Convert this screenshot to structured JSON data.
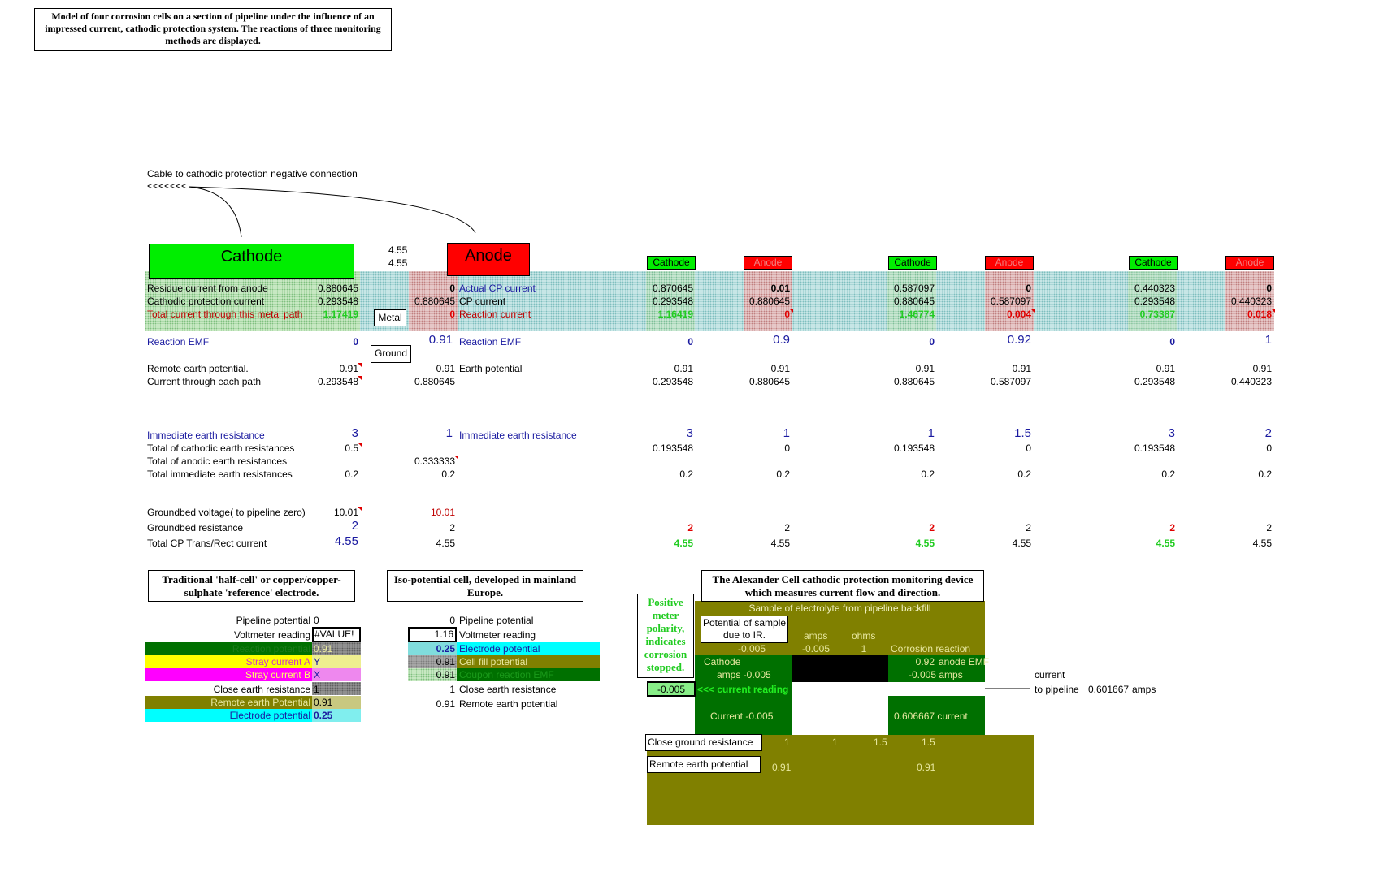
{
  "title_box": "Model of four corrosion cells on a section of pipeline under the influence of an impressed current, cathodic protection system.  The reactions of three monitoring methods are displayed.",
  "cable": {
    "label": "Cable to cathodic protection negative connection",
    "arrows": "<<<<<<<"
  },
  "cathode_label": "Cathode",
  "anode_label": "Anode",
  "small_cathode": "Cathode",
  "small_anode": "Anode",
  "top_values": [
    "4.55",
    "4.55"
  ],
  "metal_label": "Metal",
  "ground_label": "Ground",
  "left_rows": {
    "residue": "Residue current from anode",
    "cp": "Cathodic protection current",
    "total": "Total current through this metal path",
    "emf": "Reaction EMF",
    "remote": "Remote earth potential.",
    "path": "Current through each path",
    "immediate": "Immediate earth resistance",
    "tot_cath": "Total of cathodic earth resistances",
    "tot_anod": "Total of anodic earth resistances",
    "tot_imm": "Total immediate earth resistances",
    "gb_volt": "Groundbed voltage( to pipeline zero)",
    "gb_res": "Groundbed resistance",
    "cp_total": "Total CP Trans/Rect current"
  },
  "mid_rows": {
    "actual": "Actual CP current",
    "cp": "CP current",
    "reaction": "Reaction current",
    "emf": "Reaction EMF",
    "earth": "Earth potential",
    "immediate": "Immediate earth resistance"
  },
  "cells": [
    {
      "c_res": "0.880645",
      "c_cp": "0.293548",
      "c_tot": "1.17419",
      "c_emf": "0",
      "c_rem": "0.91",
      "c_path": "0.293548",
      "c_imm": "3",
      "c_totc": "0.5",
      "c_tota": "",
      "c_toti": "0.2",
      "c_gbv": "10.01",
      "c_gbr": "2",
      "c_cpt": "4.55",
      "a_res": "0",
      "a_cp": "0.880645",
      "a_tot": "0",
      "a_emf": "0.91",
      "a_rem": "0.91",
      "a_path": "0.880645",
      "a_imm": "1",
      "a_totc": "",
      "a_tota": "0.333333",
      "a_toti": "0.2",
      "a_gbv": "10.01",
      "a_gbr": "2",
      "a_cpt": "4.55"
    },
    {
      "c_res": "0.870645",
      "c_cp": "0.293548",
      "c_tot": "1.16419",
      "c_emf": "0",
      "c_rem": "0.91",
      "c_path": "0.293548",
      "c_imm": "3",
      "c_totc": "0.193548",
      "c_toti": "0.2",
      "c_gbr": "2",
      "c_cpt": "4.55",
      "a_res": "0.01",
      "a_cp": "0.880645",
      "a_tot": "0",
      "a_emf": "0.9",
      "a_rem": "0.91",
      "a_path": "0.880645",
      "a_imm": "1",
      "a_totc": "0",
      "a_toti": "0.2",
      "a_gbr": "2",
      "a_cpt": "4.55"
    },
    {
      "c_res": "0.587097",
      "c_cp": "0.880645",
      "c_tot": "1.46774",
      "c_emf": "0",
      "c_rem": "0.91",
      "c_path": "0.880645",
      "c_imm": "1",
      "c_totc": "0.193548",
      "c_toti": "0.2",
      "c_gbr": "2",
      "c_cpt": "4.55",
      "a_res": "0",
      "a_cp": "0.587097",
      "a_tot": "0.004",
      "a_emf": "0.92",
      "a_rem": "0.91",
      "a_path": "0.587097",
      "a_imm": "1.5",
      "a_totc": "0",
      "a_toti": "0.2",
      "a_gbr": "2",
      "a_cpt": "4.55"
    },
    {
      "c_res": "0.440323",
      "c_cp": "0.293548",
      "c_tot": "0.73387",
      "c_emf": "0",
      "c_rem": "0.91",
      "c_path": "0.293548",
      "c_imm": "3",
      "c_totc": "0.193548",
      "c_toti": "0.2",
      "c_gbr": "2",
      "c_cpt": "4.55",
      "a_res": "0",
      "a_cp": "0.440323",
      "a_tot": "0.018",
      "a_emf": "1",
      "a_rem": "0.91",
      "a_path": "0.440323",
      "a_imm": "2",
      "a_totc": "0",
      "a_toti": "0.2",
      "a_gbr": "2",
      "a_cpt": "4.55"
    }
  ],
  "halfcell": {
    "title": "Traditional 'half-cell' or copper/copper-sulphate 'reference' electrode.",
    "rows": [
      {
        "label": "Pipeline potential",
        "value": "0"
      },
      {
        "label": "Voltmeter reading",
        "value": "#VALUE!"
      },
      {
        "label": "Reaction potential",
        "value": "0.91"
      },
      {
        "label": "Stray current A",
        "value": "Y"
      },
      {
        "label": "Stray current B",
        "value": "X"
      },
      {
        "label": "Close earth resistance",
        "value": "1"
      },
      {
        "label": "Remote earth Potential",
        "value": "0.91"
      },
      {
        "label": "Electrode potential",
        "value": "0.25"
      }
    ]
  },
  "isocell": {
    "title": "Iso-potential cell, developed in mainland Europe.",
    "rows": [
      {
        "value": "0",
        "label": "Pipeline potential"
      },
      {
        "value": "1.16",
        "label": "Voltmeter reading"
      },
      {
        "value": "0.25",
        "label": "Electrode potential"
      },
      {
        "value": "0.91",
        "label": "Cell fill potential"
      },
      {
        "value": "0.91",
        "label": "Coupon reaction EMF"
      },
      {
        "value": "1",
        "label": "Close earth resistance"
      },
      {
        "value": "0.91",
        "label": "Remote earth potential"
      }
    ]
  },
  "alexander": {
    "title": "The Alexander Cell cathodic protection monitoring device which measures current flow and direction.",
    "positive_note": "Positive meter polarity, indicates corrosion stopped.",
    "sample": "Sample of electrolyte from pipeline backfill",
    "potential_box": "Potential of sample due to IR.",
    "amps": "amps",
    "ohms": "ohms",
    "v1": "-0.005",
    "v2": "-0.005",
    "v3": "1",
    "corrosion_reaction": "Corrosion  reaction",
    "cathode": "Cathode",
    "anode_emf_val": "0.92",
    "anode_emf": "anode EMF",
    "cathode_amps": "amps -0.005",
    "right_amps": "-0.005  amps",
    "reading": "-0.005",
    "reading_label": "<<< current reading",
    "current_left": "Current -0.005",
    "current_right": "0.606667  current",
    "close_ground": "Close ground resistance",
    "cg_vals": [
      "1",
      "1",
      "1.5",
      "1.5"
    ],
    "remote_earth": "Remote earth potential",
    "re_vals": [
      "0.91",
      "0.91"
    ],
    "pipe_current": "current",
    "pipe_label": "to pipeline",
    "pipe_value": "0.601667",
    "pipe_unit": "amps"
  }
}
